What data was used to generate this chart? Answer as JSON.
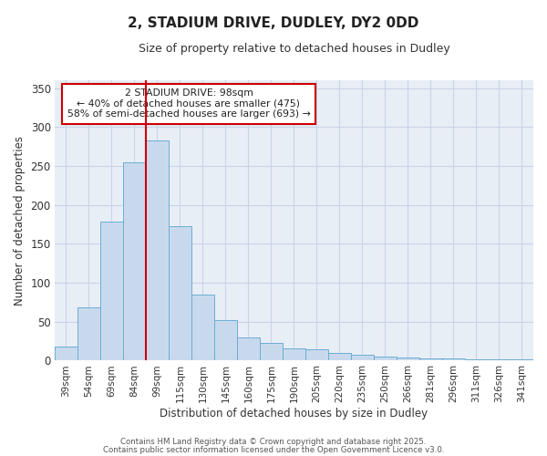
{
  "title1": "2, STADIUM DRIVE, DUDLEY, DY2 0DD",
  "title2": "Size of property relative to detached houses in Dudley",
  "xlabel": "Distribution of detached houses by size in Dudley",
  "ylabel": "Number of detached properties",
  "bar_labels": [
    "39sqm",
    "54sqm",
    "69sqm",
    "84sqm",
    "99sqm",
    "115sqm",
    "130sqm",
    "145sqm",
    "160sqm",
    "175sqm",
    "190sqm",
    "205sqm",
    "220sqm",
    "235sqm",
    "250sqm",
    "266sqm",
    "281sqm",
    "296sqm",
    "311sqm",
    "326sqm",
    "341sqm"
  ],
  "bar_values": [
    18,
    68,
    178,
    255,
    283,
    172,
    85,
    52,
    29,
    22,
    15,
    14,
    10,
    7,
    5,
    4,
    2,
    2,
    1,
    1,
    1
  ],
  "bar_color": "#c9d9ed",
  "bar_edge_color": "#6aaed6",
  "background_color": "#ffffff",
  "plot_bg_color": "#e8eef6",
  "grid_color": "#c8d4e8",
  "redline_color": "#cc0000",
  "redline_x": 3.5,
  "annotation_line1": "2 STADIUM DRIVE: 98sqm",
  "annotation_line2": "← 40% of detached houses are smaller (475)",
  "annotation_line3": "58% of semi-detached houses are larger (693) →",
  "annotation_box_facecolor": "#ffffff",
  "annotation_box_edgecolor": "#cc0000",
  "ylim": [
    0,
    360
  ],
  "yticks": [
    0,
    50,
    100,
    150,
    200,
    250,
    300,
    350
  ],
  "footer1": "Contains HM Land Registry data © Crown copyright and database right 2025.",
  "footer2": "Contains public sector information licensed under the Open Government Licence v3.0."
}
